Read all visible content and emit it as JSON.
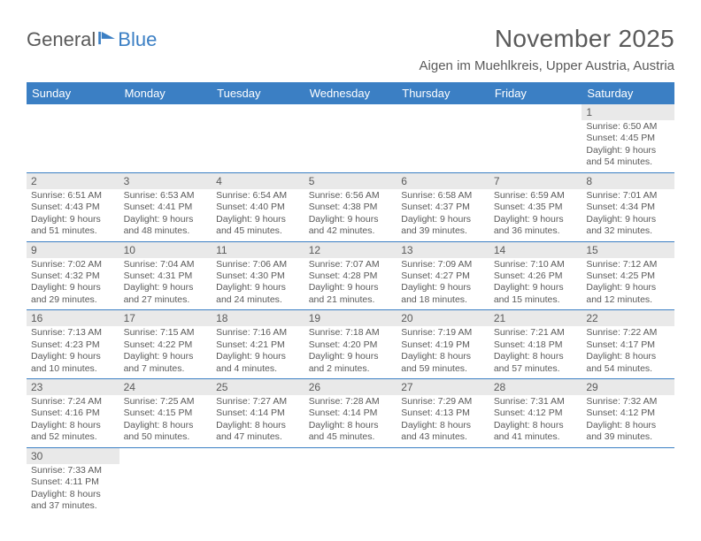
{
  "logo": {
    "part1": "General",
    "part2": "Blue"
  },
  "header": {
    "monthTitle": "November 2025",
    "location": "Aigen im Muehlkreis, Upper Austria, Austria"
  },
  "colors": {
    "headerBlue": "#3b7fc4",
    "dayBg": "#e9e9e9",
    "text": "#5a5a5a",
    "pageBg": "#ffffff"
  },
  "weekdays": [
    "Sunday",
    "Monday",
    "Tuesday",
    "Wednesday",
    "Thursday",
    "Friday",
    "Saturday"
  ],
  "weeks": [
    {
      "days": [
        null,
        null,
        null,
        null,
        null,
        null,
        {
          "n": "1",
          "sr": "Sunrise: 6:50 AM",
          "ss": "Sunset: 4:45 PM",
          "dl1": "Daylight: 9 hours",
          "dl2": "and 54 minutes."
        }
      ]
    },
    {
      "days": [
        {
          "n": "2",
          "sr": "Sunrise: 6:51 AM",
          "ss": "Sunset: 4:43 PM",
          "dl1": "Daylight: 9 hours",
          "dl2": "and 51 minutes."
        },
        {
          "n": "3",
          "sr": "Sunrise: 6:53 AM",
          "ss": "Sunset: 4:41 PM",
          "dl1": "Daylight: 9 hours",
          "dl2": "and 48 minutes."
        },
        {
          "n": "4",
          "sr": "Sunrise: 6:54 AM",
          "ss": "Sunset: 4:40 PM",
          "dl1": "Daylight: 9 hours",
          "dl2": "and 45 minutes."
        },
        {
          "n": "5",
          "sr": "Sunrise: 6:56 AM",
          "ss": "Sunset: 4:38 PM",
          "dl1": "Daylight: 9 hours",
          "dl2": "and 42 minutes."
        },
        {
          "n": "6",
          "sr": "Sunrise: 6:58 AM",
          "ss": "Sunset: 4:37 PM",
          "dl1": "Daylight: 9 hours",
          "dl2": "and 39 minutes."
        },
        {
          "n": "7",
          "sr": "Sunrise: 6:59 AM",
          "ss": "Sunset: 4:35 PM",
          "dl1": "Daylight: 9 hours",
          "dl2": "and 36 minutes."
        },
        {
          "n": "8",
          "sr": "Sunrise: 7:01 AM",
          "ss": "Sunset: 4:34 PM",
          "dl1": "Daylight: 9 hours",
          "dl2": "and 32 minutes."
        }
      ]
    },
    {
      "days": [
        {
          "n": "9",
          "sr": "Sunrise: 7:02 AM",
          "ss": "Sunset: 4:32 PM",
          "dl1": "Daylight: 9 hours",
          "dl2": "and 29 minutes."
        },
        {
          "n": "10",
          "sr": "Sunrise: 7:04 AM",
          "ss": "Sunset: 4:31 PM",
          "dl1": "Daylight: 9 hours",
          "dl2": "and 27 minutes."
        },
        {
          "n": "11",
          "sr": "Sunrise: 7:06 AM",
          "ss": "Sunset: 4:30 PM",
          "dl1": "Daylight: 9 hours",
          "dl2": "and 24 minutes."
        },
        {
          "n": "12",
          "sr": "Sunrise: 7:07 AM",
          "ss": "Sunset: 4:28 PM",
          "dl1": "Daylight: 9 hours",
          "dl2": "and 21 minutes."
        },
        {
          "n": "13",
          "sr": "Sunrise: 7:09 AM",
          "ss": "Sunset: 4:27 PM",
          "dl1": "Daylight: 9 hours",
          "dl2": "and 18 minutes."
        },
        {
          "n": "14",
          "sr": "Sunrise: 7:10 AM",
          "ss": "Sunset: 4:26 PM",
          "dl1": "Daylight: 9 hours",
          "dl2": "and 15 minutes."
        },
        {
          "n": "15",
          "sr": "Sunrise: 7:12 AM",
          "ss": "Sunset: 4:25 PM",
          "dl1": "Daylight: 9 hours",
          "dl2": "and 12 minutes."
        }
      ]
    },
    {
      "days": [
        {
          "n": "16",
          "sr": "Sunrise: 7:13 AM",
          "ss": "Sunset: 4:23 PM",
          "dl1": "Daylight: 9 hours",
          "dl2": "and 10 minutes."
        },
        {
          "n": "17",
          "sr": "Sunrise: 7:15 AM",
          "ss": "Sunset: 4:22 PM",
          "dl1": "Daylight: 9 hours",
          "dl2": "and 7 minutes."
        },
        {
          "n": "18",
          "sr": "Sunrise: 7:16 AM",
          "ss": "Sunset: 4:21 PM",
          "dl1": "Daylight: 9 hours",
          "dl2": "and 4 minutes."
        },
        {
          "n": "19",
          "sr": "Sunrise: 7:18 AM",
          "ss": "Sunset: 4:20 PM",
          "dl1": "Daylight: 9 hours",
          "dl2": "and 2 minutes."
        },
        {
          "n": "20",
          "sr": "Sunrise: 7:19 AM",
          "ss": "Sunset: 4:19 PM",
          "dl1": "Daylight: 8 hours",
          "dl2": "and 59 minutes."
        },
        {
          "n": "21",
          "sr": "Sunrise: 7:21 AM",
          "ss": "Sunset: 4:18 PM",
          "dl1": "Daylight: 8 hours",
          "dl2": "and 57 minutes."
        },
        {
          "n": "22",
          "sr": "Sunrise: 7:22 AM",
          "ss": "Sunset: 4:17 PM",
          "dl1": "Daylight: 8 hours",
          "dl2": "and 54 minutes."
        }
      ]
    },
    {
      "days": [
        {
          "n": "23",
          "sr": "Sunrise: 7:24 AM",
          "ss": "Sunset: 4:16 PM",
          "dl1": "Daylight: 8 hours",
          "dl2": "and 52 minutes."
        },
        {
          "n": "24",
          "sr": "Sunrise: 7:25 AM",
          "ss": "Sunset: 4:15 PM",
          "dl1": "Daylight: 8 hours",
          "dl2": "and 50 minutes."
        },
        {
          "n": "25",
          "sr": "Sunrise: 7:27 AM",
          "ss": "Sunset: 4:14 PM",
          "dl1": "Daylight: 8 hours",
          "dl2": "and 47 minutes."
        },
        {
          "n": "26",
          "sr": "Sunrise: 7:28 AM",
          "ss": "Sunset: 4:14 PM",
          "dl1": "Daylight: 8 hours",
          "dl2": "and 45 minutes."
        },
        {
          "n": "27",
          "sr": "Sunrise: 7:29 AM",
          "ss": "Sunset: 4:13 PM",
          "dl1": "Daylight: 8 hours",
          "dl2": "and 43 minutes."
        },
        {
          "n": "28",
          "sr": "Sunrise: 7:31 AM",
          "ss": "Sunset: 4:12 PM",
          "dl1": "Daylight: 8 hours",
          "dl2": "and 41 minutes."
        },
        {
          "n": "29",
          "sr": "Sunrise: 7:32 AM",
          "ss": "Sunset: 4:12 PM",
          "dl1": "Daylight: 8 hours",
          "dl2": "and 39 minutes."
        }
      ]
    },
    {
      "days": [
        {
          "n": "30",
          "sr": "Sunrise: 7:33 AM",
          "ss": "Sunset: 4:11 PM",
          "dl1": "Daylight: 8 hours",
          "dl2": "and 37 minutes."
        },
        null,
        null,
        null,
        null,
        null,
        null
      ]
    }
  ]
}
